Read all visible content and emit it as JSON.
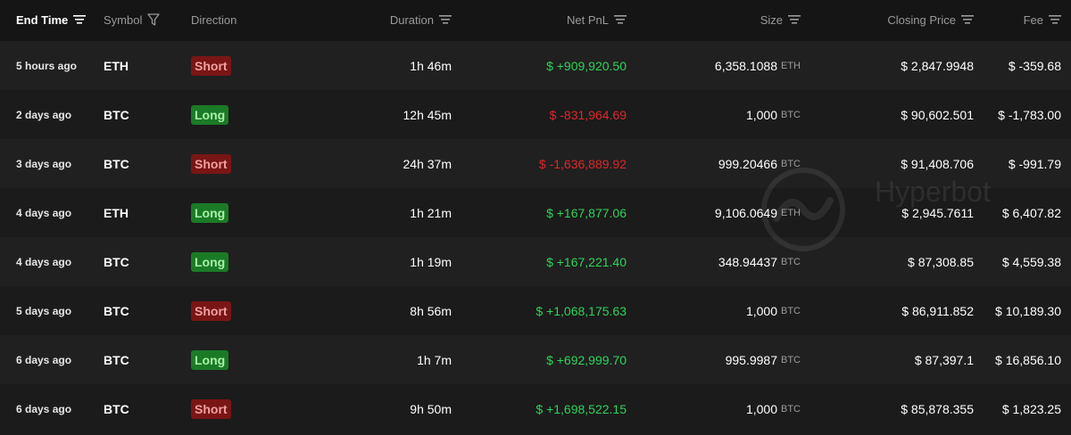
{
  "columns": [
    {
      "label": "End Time",
      "icon": "sort-icon",
      "active": true
    },
    {
      "label": "Symbol",
      "icon": "filter-icon"
    },
    {
      "label": "Direction"
    },
    {
      "label": "Duration",
      "icon": "sort-icon"
    },
    {
      "label": "Net PnL",
      "icon": "sort-icon"
    },
    {
      "label": "Size",
      "icon": "sort-icon"
    },
    {
      "label": "Closing Price",
      "icon": "sort-icon"
    },
    {
      "label": "Fee",
      "icon": "sort-icon"
    }
  ],
  "rows": [
    {
      "end_time": "5 hours ago",
      "symbol": "ETH",
      "direction": "Short",
      "duration": "1h 46m",
      "net_pnl": "$ +909,920.50",
      "pnl_sign": "positive",
      "size": "6,358.1088",
      "size_unit": "ETH",
      "closing_price": "$ 2,847.9948",
      "fee": "$ -359.68"
    },
    {
      "end_time": "2 days ago",
      "symbol": "BTC",
      "direction": "Long",
      "duration": "12h 45m",
      "net_pnl": "$ -831,964.69",
      "pnl_sign": "negative",
      "size": "1,000",
      "size_unit": "BTC",
      "closing_price": "$ 90,602.501",
      "fee": "$ -1,783.00"
    },
    {
      "end_time": "3 days ago",
      "symbol": "BTC",
      "direction": "Short",
      "duration": "24h 37m",
      "net_pnl": "$ -1,636,889.92",
      "pnl_sign": "negative",
      "size": "999.20466",
      "size_unit": "BTC",
      "closing_price": "$ 91,408.706",
      "fee": "$ -991.79"
    },
    {
      "end_time": "4 days ago",
      "symbol": "ETH",
      "direction": "Long",
      "duration": "1h 21m",
      "net_pnl": "$ +167,877.06",
      "pnl_sign": "positive",
      "size": "9,106.0649",
      "size_unit": "ETH",
      "closing_price": "$ 2,945.7611",
      "fee": "$ 6,407.82"
    },
    {
      "end_time": "4 days ago",
      "symbol": "BTC",
      "direction": "Long",
      "duration": "1h 19m",
      "net_pnl": "$ +167,221.40",
      "pnl_sign": "positive",
      "size": "348.94437",
      "size_unit": "BTC",
      "closing_price": "$ 87,308.85",
      "fee": "$ 4,559.38"
    },
    {
      "end_time": "5 days ago",
      "symbol": "BTC",
      "direction": "Short",
      "duration": "8h 56m",
      "net_pnl": "$ +1,068,175.63",
      "pnl_sign": "positive",
      "size": "1,000",
      "size_unit": "BTC",
      "closing_price": "$ 86,911.852",
      "fee": "$ 10,189.30"
    },
    {
      "end_time": "6 days ago",
      "symbol": "BTC",
      "direction": "Long",
      "duration": "1h 7m",
      "net_pnl": "$ +692,999.70",
      "pnl_sign": "positive",
      "size": "995.9987",
      "size_unit": "BTC",
      "closing_price": "$ 87,397.1",
      "fee": "$ 16,856.10"
    },
    {
      "end_time": "6 days ago",
      "symbol": "BTC",
      "direction": "Short",
      "duration": "9h 50m",
      "net_pnl": "$ +1,698,522.15",
      "pnl_sign": "positive",
      "size": "1,000",
      "size_unit": "BTC",
      "closing_price": "$ 85,878.355",
      "fee": "$ 1,823.25"
    }
  ],
  "watermark": {
    "text": "Hyperbot"
  },
  "colors": {
    "positive": "#2fd35a",
    "negative": "#e0262a",
    "short_bg": "#7a1515",
    "long_bg": "#1b7a26",
    "background": "#1b1b1b"
  }
}
